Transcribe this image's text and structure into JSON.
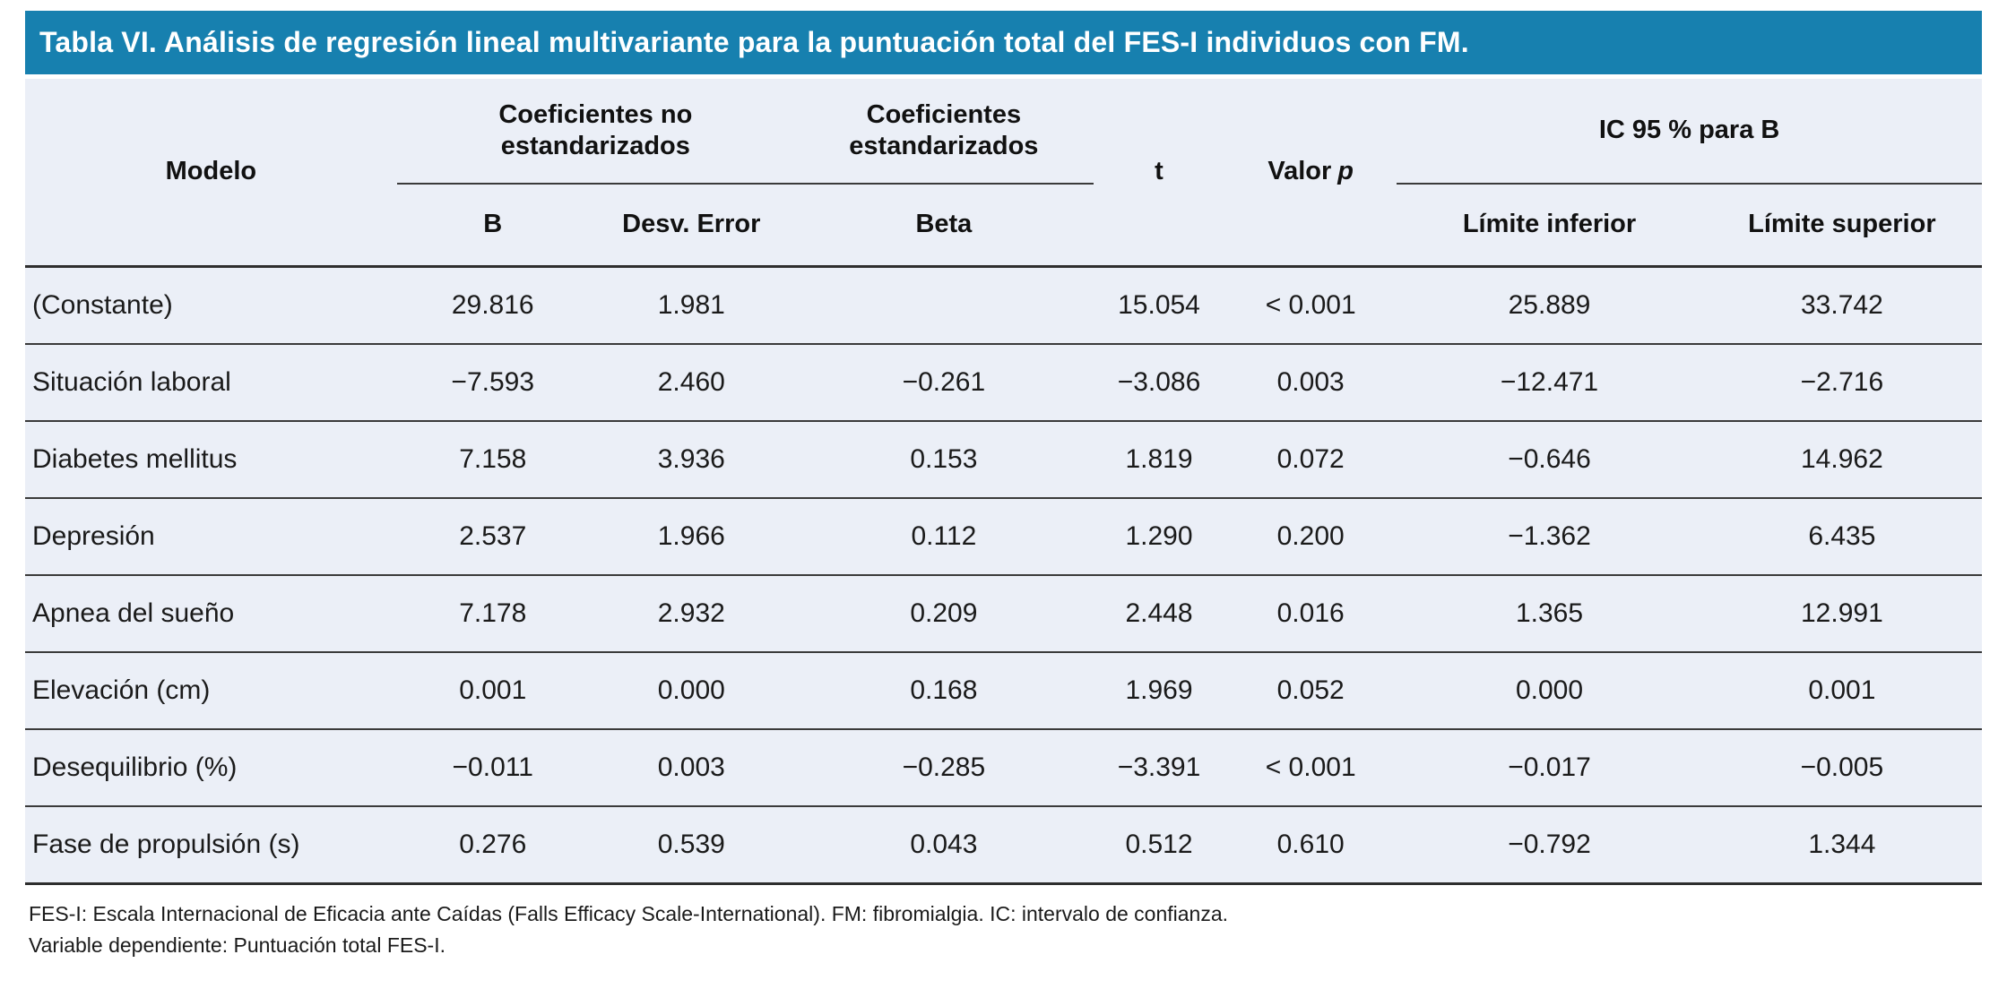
{
  "title": "Tabla VI. Análisis de regresión lineal multivariante para la puntuación total del FES-I individuos con FM.",
  "colors": {
    "title_bar_bg": "#1780af",
    "title_text": "#ffffff",
    "table_body_bg": "#ebeff7",
    "rule_thin": "#3a3a3a",
    "rule_thick": "#2e2e2e",
    "text": "#1a1a1a"
  },
  "table": {
    "headers": {
      "modelo": "Modelo",
      "coef_no_std": "Coeficientes no estandarizados",
      "coef_std": "Coeficientes estandarizados",
      "t": "t",
      "valor_p": {
        "label": "Valor",
        "p": "p"
      },
      "ic95": "IC 95 % para B",
      "b": "B",
      "desv_error": "Desv. Error",
      "beta": "Beta",
      "limite_inferior": "Límite inferior",
      "limite_superior": "Límite superior"
    },
    "rows": [
      {
        "modelo": "(Constante)",
        "b": "29.816",
        "desv_error": "1.981",
        "beta": "",
        "t": "15.054",
        "valor_p": "< 0.001",
        "lim_inf": "25.889",
        "lim_sup": "33.742"
      },
      {
        "modelo": "Situación laboral",
        "b": "−7.593",
        "desv_error": "2.460",
        "beta": "−0.261",
        "t": "−3.086",
        "valor_p": "0.003",
        "lim_inf": "−12.471",
        "lim_sup": "−2.716"
      },
      {
        "modelo": "Diabetes mellitus",
        "b": "7.158",
        "desv_error": "3.936",
        "beta": "0.153",
        "t": "1.819",
        "valor_p": "0.072",
        "lim_inf": "−0.646",
        "lim_sup": "14.962"
      },
      {
        "modelo": "Depresión",
        "b": "2.537",
        "desv_error": "1.966",
        "beta": "0.112",
        "t": "1.290",
        "valor_p": "0.200",
        "lim_inf": "−1.362",
        "lim_sup": "6.435"
      },
      {
        "modelo": "Apnea del sueño",
        "b": "7.178",
        "desv_error": "2.932",
        "beta": "0.209",
        "t": "2.448",
        "valor_p": "0.016",
        "lim_inf": "1.365",
        "lim_sup": "12.991"
      },
      {
        "modelo": "Elevación (cm)",
        "b": "0.001",
        "desv_error": "0.000",
        "beta": "0.168",
        "t": "1.969",
        "valor_p": "0.052",
        "lim_inf": "0.000",
        "lim_sup": "0.001"
      },
      {
        "modelo": "Desequilibrio (%)",
        "b": "−0.011",
        "desv_error": "0.003",
        "beta": "−0.285",
        "t": "−3.391",
        "valor_p": "< 0.001",
        "lim_inf": "−0.017",
        "lim_sup": "−0.005"
      },
      {
        "modelo": "Fase de propulsión (s)",
        "b": "0.276",
        "desv_error": "0.539",
        "beta": "0.043",
        "t": "0.512",
        "valor_p": "0.610",
        "lim_inf": "−0.792",
        "lim_sup": "1.344"
      }
    ]
  },
  "footnotes": {
    "line1": "FES-I: Escala Internacional de Eficacia ante Caídas (Falls Efficacy Scale-International). FM: fibromialgia. IC: intervalo de confianza.",
    "line2": "Variable dependiente: Puntuación total FES-I."
  }
}
